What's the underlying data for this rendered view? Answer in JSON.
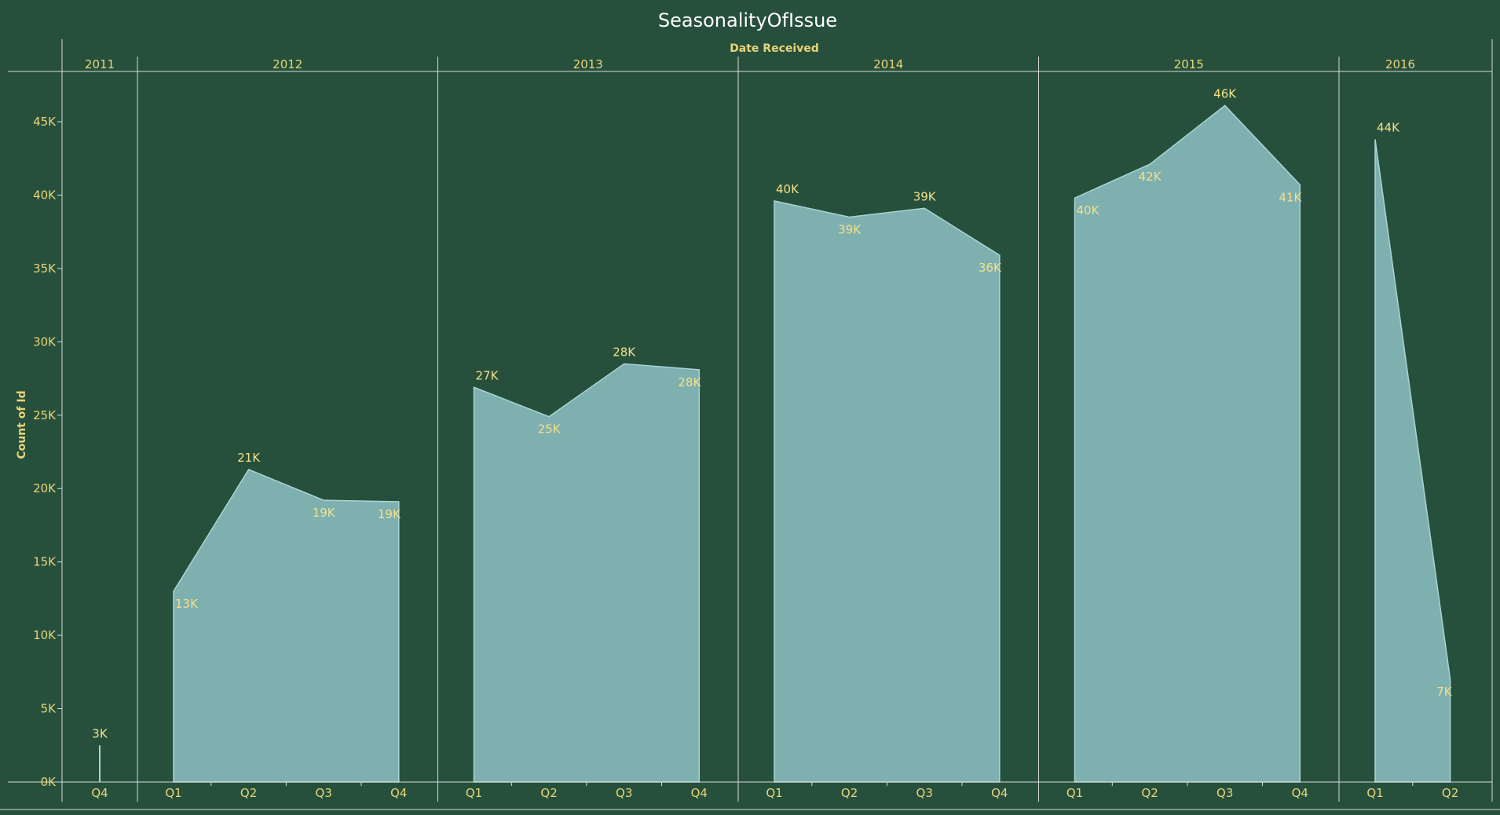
{
  "chart_data": {
    "type": "area",
    "title": "SeasonalityOfIssue",
    "column_header": "Date Received",
    "ylabel": "Count of Id",
    "ylim": [
      0,
      48000
    ],
    "y_ticks": [
      {
        "value": 0,
        "label": "0K"
      },
      {
        "value": 5000,
        "label": "5K"
      },
      {
        "value": 10000,
        "label": "10K"
      },
      {
        "value": 15000,
        "label": "15K"
      },
      {
        "value": 20000,
        "label": "20K"
      },
      {
        "value": 25000,
        "label": "25K"
      },
      {
        "value": 30000,
        "label": "30K"
      },
      {
        "value": 35000,
        "label": "35K"
      },
      {
        "value": 40000,
        "label": "40K"
      },
      {
        "value": 45000,
        "label": "45K"
      }
    ],
    "years": [
      {
        "year": "2011",
        "points": [
          {
            "quarter": "Q4",
            "value": 2500,
            "label": "3K",
            "label_pos": "above"
          }
        ]
      },
      {
        "year": "2012",
        "points": [
          {
            "quarter": "Q1",
            "value": 13000,
            "label": "13K",
            "label_pos": "below"
          },
          {
            "quarter": "Q2",
            "value": 21300,
            "label": "21K",
            "label_pos": "above"
          },
          {
            "quarter": "Q3",
            "value": 19200,
            "label": "19K",
            "label_pos": "below"
          },
          {
            "quarter": "Q4",
            "value": 19100,
            "label": "19K",
            "label_pos": "below"
          }
        ]
      },
      {
        "year": "2013",
        "points": [
          {
            "quarter": "Q1",
            "value": 26900,
            "label": "27K",
            "label_pos": "above"
          },
          {
            "quarter": "Q2",
            "value": 24900,
            "label": "25K",
            "label_pos": "below"
          },
          {
            "quarter": "Q3",
            "value": 28500,
            "label": "28K",
            "label_pos": "above"
          },
          {
            "quarter": "Q4",
            "value": 28100,
            "label": "28K",
            "label_pos": "below"
          }
        ]
      },
      {
        "year": "2014",
        "points": [
          {
            "quarter": "Q1",
            "value": 39600,
            "label": "40K",
            "label_pos": "above"
          },
          {
            "quarter": "Q2",
            "value": 38500,
            "label": "39K",
            "label_pos": "below"
          },
          {
            "quarter": "Q3",
            "value": 39100,
            "label": "39K",
            "label_pos": "above"
          },
          {
            "quarter": "Q4",
            "value": 35900,
            "label": "36K",
            "label_pos": "below"
          }
        ]
      },
      {
        "year": "2015",
        "points": [
          {
            "quarter": "Q1",
            "value": 39800,
            "label": "40K",
            "label_pos": "below"
          },
          {
            "quarter": "Q2",
            "value": 42100,
            "label": "42K",
            "label_pos": "below"
          },
          {
            "quarter": "Q3",
            "value": 46100,
            "label": "46K",
            "label_pos": "above"
          },
          {
            "quarter": "Q4",
            "value": 40700,
            "label": "41K",
            "label_pos": "below"
          }
        ]
      },
      {
        "year": "2016",
        "points": [
          {
            "quarter": "Q1",
            "value": 43800,
            "label": "44K",
            "label_pos": "above"
          },
          {
            "quarter": "Q2",
            "value": 7000,
            "label": "7K",
            "label_pos": "below"
          }
        ]
      }
    ],
    "colors": {
      "background": "#26503c",
      "area_fill": "#7fb0b0",
      "text": "#e8d47a",
      "rules": "#d9d9d9"
    },
    "grid": false
  }
}
